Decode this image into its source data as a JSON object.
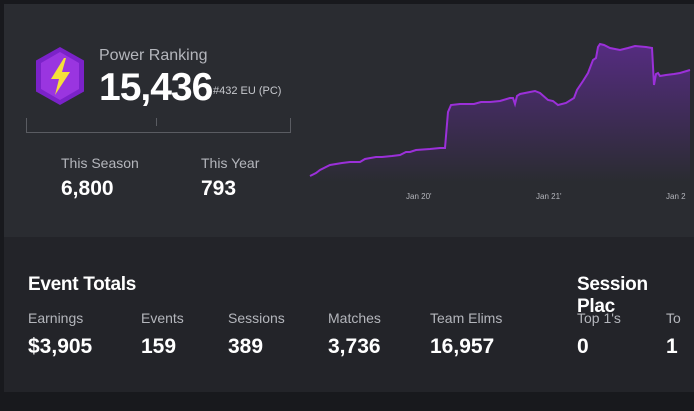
{
  "power_ranking": {
    "label": "Power Ranking",
    "value": "15,436",
    "rank": "#432 EU (PC)",
    "accent_color": "#8a2be2",
    "icon": "lightning-hex-icon"
  },
  "period_stats": [
    {
      "label": "This Season",
      "value": "6,800"
    },
    {
      "label": "This Year",
      "value": "793"
    }
  ],
  "chart_data": {
    "type": "area",
    "series": [
      {
        "values": [
          [
            0,
            176
          ],
          [
            6,
            173
          ],
          [
            10,
            170
          ],
          [
            20,
            165
          ],
          [
            32,
            163
          ],
          [
            40,
            162
          ],
          [
            50,
            162
          ],
          [
            55,
            159
          ],
          [
            66,
            157
          ],
          [
            72,
            157
          ],
          [
            82,
            156
          ],
          [
            90,
            155
          ],
          [
            96,
            152
          ],
          [
            100,
            152
          ],
          [
            106,
            150
          ],
          [
            120,
            149
          ],
          [
            130,
            148
          ],
          [
            135,
            148
          ],
          [
            138,
            112
          ],
          [
            141,
            105
          ],
          [
            150,
            104
          ],
          [
            158,
            104
          ],
          [
            164,
            104
          ],
          [
            171,
            102
          ],
          [
            180,
            102
          ],
          [
            190,
            101
          ],
          [
            200,
            98
          ],
          [
            203,
            98
          ],
          [
            205,
            104
          ],
          [
            207,
            96
          ],
          [
            210,
            94
          ],
          [
            215,
            93
          ],
          [
            220,
            92
          ],
          [
            225,
            91
          ],
          [
            230,
            93
          ],
          [
            238,
            100
          ],
          [
            243,
            101
          ],
          [
            248,
            105
          ],
          [
            256,
            103
          ],
          [
            264,
            98
          ],
          [
            267,
            90
          ],
          [
            273,
            81
          ],
          [
            278,
            73
          ],
          [
            283,
            60
          ],
          [
            286,
            58
          ],
          [
            288,
            47
          ],
          [
            290,
            44
          ],
          [
            294,
            45
          ],
          [
            300,
            48
          ],
          [
            310,
            50
          ],
          [
            318,
            48
          ],
          [
            325,
            46
          ],
          [
            336,
            47
          ],
          [
            342,
            48
          ],
          [
            344,
            85
          ],
          [
            346,
            74
          ],
          [
            348,
            73
          ],
          [
            350,
            76
          ],
          [
            356,
            75
          ],
          [
            364,
            74
          ],
          [
            370,
            73
          ],
          [
            380,
            70
          ]
        ],
        "color": "#9b30d9"
      }
    ],
    "x_tick_labels": [
      "Jan 20'",
      "Jan 21'",
      "Jan 2"
    ],
    "grid": false
  },
  "event_totals": {
    "title": "Event Totals",
    "stats": [
      {
        "label": "Earnings",
        "value": "$3,905"
      },
      {
        "label": "Events",
        "value": "159"
      },
      {
        "label": "Sessions",
        "value": "389"
      },
      {
        "label": "Matches",
        "value": "3,736"
      },
      {
        "label": "Team Elims",
        "value": "16,957"
      }
    ]
  },
  "session_placements": {
    "title": "Session Plac",
    "stats": [
      {
        "label": "Top 1's",
        "value": "0"
      },
      {
        "label": "To",
        "value": "1"
      }
    ]
  }
}
